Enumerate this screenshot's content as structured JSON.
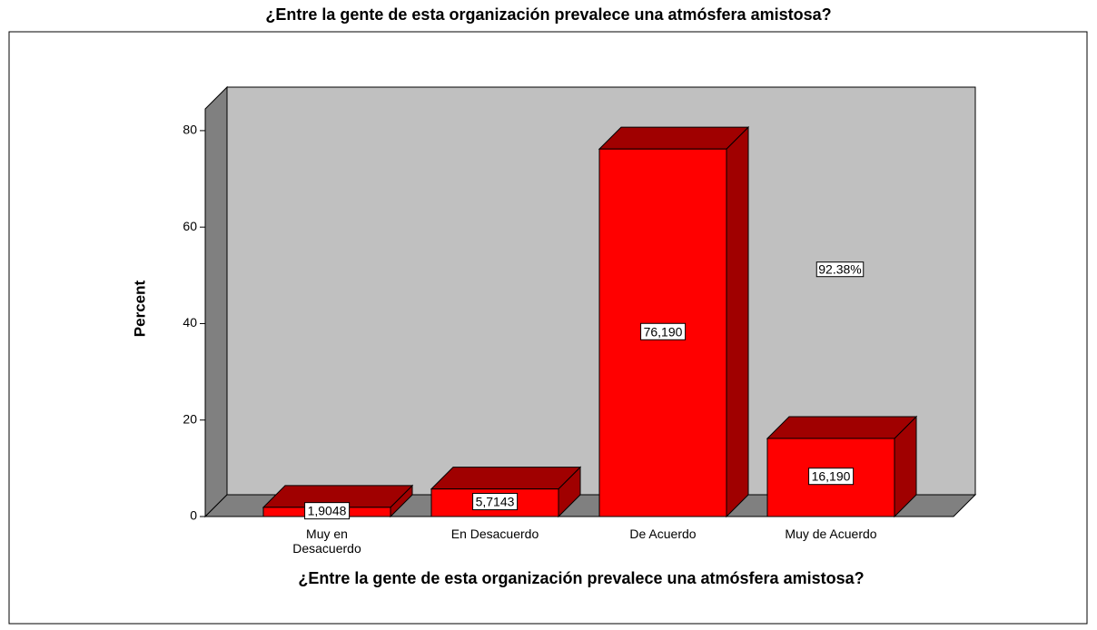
{
  "chart_data": {
    "type": "bar3d",
    "title": "¿Entre la gente de esta organización prevalece una atmósfera amistosa?",
    "x_label": "¿Entre la gente de esta organización prevalece una atmósfera amistosa?",
    "y_label": "Percent",
    "categories": [
      "Muy en Desacuerdo",
      "En Desacuerdo",
      "De Acuerdo",
      "Muy de Acuerdo"
    ],
    "values": [
      1.9048,
      5.7143,
      76.19,
      16.19
    ],
    "value_labels": [
      "1,9048",
      "5,7143",
      "76,190",
      "16,190"
    ],
    "color": "#ff0000",
    "annotation": "92.38%",
    "ylim": [
      0,
      84.5
    ],
    "yticks": [
      0,
      20,
      40,
      60,
      80
    ]
  }
}
